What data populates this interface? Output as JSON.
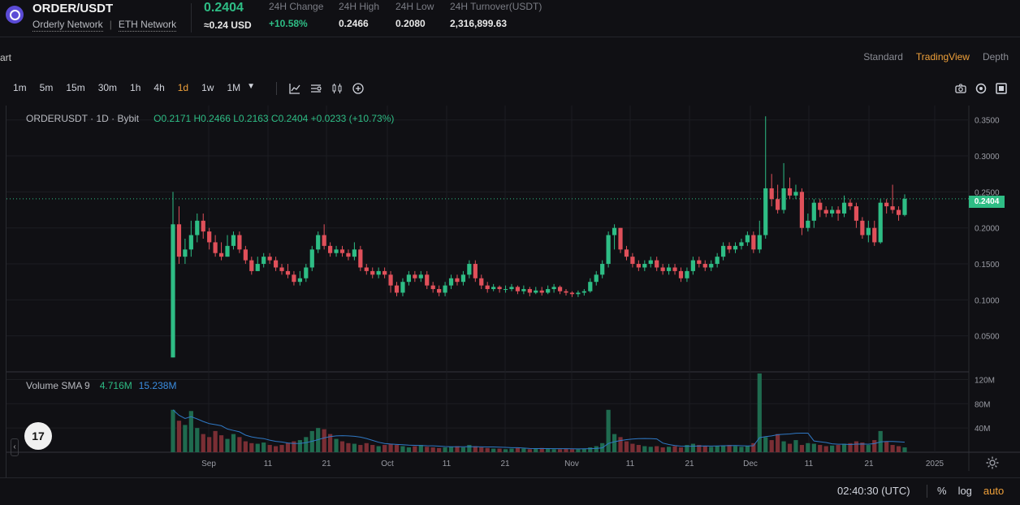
{
  "header": {
    "pair": "ORDER/USDT",
    "networks": [
      "Orderly Network",
      "ETH Network"
    ],
    "price": "0.2404",
    "price_usd": "≈0.24 USD",
    "stats": [
      {
        "label": "24H Change",
        "value": "+10.58%",
        "positive": true
      },
      {
        "label": "24H High",
        "value": "0.2466"
      },
      {
        "label": "24H Low",
        "value": "0.2080"
      },
      {
        "label": "24H Turnover(USDT)",
        "value": "2,316,899.63"
      }
    ]
  },
  "chart_header": {
    "left_label": "art",
    "modes": [
      "Standard",
      "TradingView",
      "Depth"
    ],
    "active_mode": "TradingView"
  },
  "toolbar": {
    "intervals": [
      "1m",
      "5m",
      "15m",
      "30m",
      "1h",
      "4h",
      "1d",
      "1w",
      "1M"
    ],
    "active_interval": "1d",
    "icons": [
      "indicator-icon",
      "chart-style-icon",
      "candles-icon",
      "add-icon"
    ],
    "right_icons": [
      "camera-icon",
      "settings-icon",
      "fullscreen-icon"
    ]
  },
  "legend": {
    "symbol": "ORDERUSDT · 1D · Bybit",
    "ohlc": "O0.2171  H0.2466  L0.2163  C0.2404  +0.0233 (+10.73%)"
  },
  "volume_legend": {
    "name": "Volume SMA 9",
    "v1": "4.716M",
    "v2": "15.238M"
  },
  "last_price_tag": "0.2404",
  "footer": {
    "clock": "02:40:30 (UTC)",
    "options": [
      "%",
      "log",
      "auto"
    ],
    "active_option": "auto"
  },
  "colors": {
    "up": "#2ebd85",
    "down": "#e0505a",
    "accent": "#f0a13a",
    "background": "#101014"
  },
  "chart_data": {
    "type": "candlestick",
    "price_axis": {
      "ticks": [
        "0.3500",
        "0.3000",
        "0.2500",
        "0.2000",
        "0.1500",
        "0.1000",
        "0.0500"
      ],
      "range": [
        0.0,
        0.37
      ]
    },
    "volume_axis": {
      "ticks": [
        "120M",
        "80M",
        "40M"
      ],
      "range": [
        0,
        130
      ]
    },
    "x_ticks": [
      "Sep",
      "11",
      "21",
      "Oct",
      "11",
      "21",
      "Nov",
      "11",
      "21",
      "Dec",
      "11",
      "21",
      "2025"
    ],
    "grid": true,
    "candles": [
      [
        0.02,
        0.205,
        0.25,
        0.02
      ],
      [
        0.205,
        0.16,
        0.23,
        0.15
      ],
      [
        0.16,
        0.17,
        0.185,
        0.15
      ],
      [
        0.17,
        0.19,
        0.21,
        0.16
      ],
      [
        0.19,
        0.21,
        0.22,
        0.18
      ],
      [
        0.21,
        0.195,
        0.22,
        0.185
      ],
      [
        0.195,
        0.18,
        0.2,
        0.17
      ],
      [
        0.18,
        0.165,
        0.19,
        0.16
      ],
      [
        0.165,
        0.16,
        0.18,
        0.155
      ],
      [
        0.16,
        0.175,
        0.19,
        0.16
      ],
      [
        0.175,
        0.19,
        0.195,
        0.17
      ],
      [
        0.19,
        0.17,
        0.195,
        0.165
      ],
      [
        0.17,
        0.155,
        0.175,
        0.15
      ],
      [
        0.155,
        0.14,
        0.16,
        0.135
      ],
      [
        0.14,
        0.15,
        0.16,
        0.14
      ],
      [
        0.15,
        0.16,
        0.165,
        0.145
      ],
      [
        0.16,
        0.155,
        0.165,
        0.15
      ],
      [
        0.155,
        0.145,
        0.16,
        0.14
      ],
      [
        0.145,
        0.14,
        0.15,
        0.135
      ],
      [
        0.14,
        0.135,
        0.15,
        0.13
      ],
      [
        0.135,
        0.125,
        0.14,
        0.12
      ],
      [
        0.125,
        0.13,
        0.14,
        0.12
      ],
      [
        0.13,
        0.145,
        0.15,
        0.125
      ],
      [
        0.145,
        0.17,
        0.175,
        0.14
      ],
      [
        0.17,
        0.19,
        0.195,
        0.165
      ],
      [
        0.19,
        0.175,
        0.205,
        0.17
      ],
      [
        0.175,
        0.165,
        0.18,
        0.16
      ],
      [
        0.165,
        0.17,
        0.175,
        0.16
      ],
      [
        0.17,
        0.165,
        0.175,
        0.16
      ],
      [
        0.165,
        0.16,
        0.17,
        0.155
      ],
      [
        0.16,
        0.17,
        0.18,
        0.155
      ],
      [
        0.17,
        0.145,
        0.175,
        0.14
      ],
      [
        0.145,
        0.14,
        0.15,
        0.135
      ],
      [
        0.14,
        0.135,
        0.145,
        0.13
      ],
      [
        0.135,
        0.14,
        0.145,
        0.13
      ],
      [
        0.14,
        0.135,
        0.145,
        0.13
      ],
      [
        0.135,
        0.12,
        0.14,
        0.11
      ],
      [
        0.12,
        0.11,
        0.125,
        0.105
      ],
      [
        0.11,
        0.125,
        0.13,
        0.105
      ],
      [
        0.125,
        0.135,
        0.14,
        0.12
      ],
      [
        0.135,
        0.13,
        0.14,
        0.125
      ],
      [
        0.13,
        0.135,
        0.14,
        0.125
      ],
      [
        0.135,
        0.12,
        0.14,
        0.115
      ],
      [
        0.12,
        0.115,
        0.125,
        0.11
      ],
      [
        0.115,
        0.11,
        0.12,
        0.105
      ],
      [
        0.11,
        0.12,
        0.125,
        0.105
      ],
      [
        0.12,
        0.13,
        0.135,
        0.115
      ],
      [
        0.13,
        0.125,
        0.135,
        0.12
      ],
      [
        0.125,
        0.135,
        0.14,
        0.12
      ],
      [
        0.135,
        0.15,
        0.155,
        0.13
      ],
      [
        0.15,
        0.13,
        0.155,
        0.125
      ],
      [
        0.13,
        0.12,
        0.135,
        0.115
      ],
      [
        0.12,
        0.115,
        0.125,
        0.11
      ],
      [
        0.115,
        0.118,
        0.122,
        0.112
      ],
      [
        0.118,
        0.115,
        0.12,
        0.11
      ],
      [
        0.115,
        0.115,
        0.12,
        0.11
      ],
      [
        0.115,
        0.118,
        0.122,
        0.112
      ],
      [
        0.118,
        0.112,
        0.12,
        0.108
      ],
      [
        0.112,
        0.115,
        0.12,
        0.108
      ],
      [
        0.115,
        0.11,
        0.118,
        0.105
      ],
      [
        0.11,
        0.113,
        0.118,
        0.108
      ],
      [
        0.113,
        0.11,
        0.118,
        0.106
      ],
      [
        0.11,
        0.115,
        0.12,
        0.108
      ],
      [
        0.115,
        0.118,
        0.122,
        0.11
      ],
      [
        0.118,
        0.112,
        0.12,
        0.108
      ],
      [
        0.112,
        0.11,
        0.115,
        0.106
      ],
      [
        0.11,
        0.108,
        0.112,
        0.104
      ],
      [
        0.108,
        0.11,
        0.113,
        0.104
      ],
      [
        0.11,
        0.112,
        0.115,
        0.106
      ],
      [
        0.112,
        0.125,
        0.13,
        0.11
      ],
      [
        0.125,
        0.135,
        0.14,
        0.12
      ],
      [
        0.135,
        0.15,
        0.155,
        0.13
      ],
      [
        0.15,
        0.19,
        0.195,
        0.145
      ],
      [
        0.19,
        0.2,
        0.205,
        0.17
      ],
      [
        0.2,
        0.17,
        0.2,
        0.165
      ],
      [
        0.17,
        0.16,
        0.175,
        0.155
      ],
      [
        0.16,
        0.15,
        0.165,
        0.145
      ],
      [
        0.15,
        0.145,
        0.155,
        0.14
      ],
      [
        0.145,
        0.15,
        0.155,
        0.14
      ],
      [
        0.15,
        0.155,
        0.16,
        0.145
      ],
      [
        0.155,
        0.145,
        0.16,
        0.14
      ],
      [
        0.145,
        0.14,
        0.15,
        0.135
      ],
      [
        0.14,
        0.145,
        0.15,
        0.135
      ],
      [
        0.145,
        0.14,
        0.15,
        0.135
      ],
      [
        0.14,
        0.13,
        0.145,
        0.125
      ],
      [
        0.13,
        0.14,
        0.145,
        0.125
      ],
      [
        0.14,
        0.155,
        0.16,
        0.135
      ],
      [
        0.155,
        0.15,
        0.16,
        0.145
      ],
      [
        0.15,
        0.145,
        0.155,
        0.14
      ],
      [
        0.145,
        0.15,
        0.155,
        0.14
      ],
      [
        0.15,
        0.16,
        0.165,
        0.145
      ],
      [
        0.16,
        0.175,
        0.18,
        0.155
      ],
      [
        0.175,
        0.17,
        0.18,
        0.165
      ],
      [
        0.17,
        0.175,
        0.18,
        0.165
      ],
      [
        0.175,
        0.18,
        0.185,
        0.17
      ],
      [
        0.18,
        0.19,
        0.195,
        0.175
      ],
      [
        0.19,
        0.17,
        0.195,
        0.165
      ],
      [
        0.17,
        0.19,
        0.21,
        0.165
      ],
      [
        0.19,
        0.255,
        0.355,
        0.185
      ],
      [
        0.255,
        0.24,
        0.275,
        0.23
      ],
      [
        0.24,
        0.225,
        0.26,
        0.22
      ],
      [
        0.225,
        0.255,
        0.29,
        0.22
      ],
      [
        0.255,
        0.245,
        0.27,
        0.24
      ],
      [
        0.245,
        0.25,
        0.26,
        0.24
      ],
      [
        0.25,
        0.2,
        0.255,
        0.19
      ],
      [
        0.2,
        0.21,
        0.22,
        0.195
      ],
      [
        0.21,
        0.235,
        0.24,
        0.2
      ],
      [
        0.235,
        0.225,
        0.24,
        0.215
      ],
      [
        0.225,
        0.22,
        0.23,
        0.215
      ],
      [
        0.22,
        0.225,
        0.23,
        0.215
      ],
      [
        0.225,
        0.22,
        0.23,
        0.21
      ],
      [
        0.22,
        0.235,
        0.245,
        0.215
      ],
      [
        0.235,
        0.23,
        0.24,
        0.225
      ],
      [
        0.23,
        0.21,
        0.235,
        0.2
      ],
      [
        0.21,
        0.19,
        0.215,
        0.185
      ],
      [
        0.19,
        0.2,
        0.21,
        0.18
      ],
      [
        0.2,
        0.18,
        0.21,
        0.175
      ],
      [
        0.18,
        0.235,
        0.24,
        0.178
      ],
      [
        0.235,
        0.23,
        0.24,
        0.22
      ],
      [
        0.23,
        0.225,
        0.26,
        0.22
      ],
      [
        0.225,
        0.218,
        0.23,
        0.21
      ],
      [
        0.218,
        0.2404,
        0.2466,
        0.216
      ]
    ],
    "volumes": [
      70,
      52,
      45,
      68,
      40,
      30,
      25,
      35,
      28,
      22,
      30,
      25,
      18,
      15,
      14,
      16,
      12,
      10,
      12,
      15,
      18,
      20,
      25,
      35,
      40,
      38,
      30,
      22,
      18,
      15,
      14,
      12,
      15,
      12,
      10,
      12,
      14,
      12,
      10,
      8,
      10,
      12,
      9,
      8,
      7,
      8,
      9,
      10,
      8,
      12,
      10,
      8,
      7,
      6,
      6,
      5,
      6,
      7,
      6,
      5,
      6,
      7,
      6,
      5,
      5,
      6,
      5,
      5,
      6,
      8,
      10,
      15,
      70,
      30,
      25,
      18,
      14,
      12,
      10,
      9,
      10,
      8,
      9,
      10,
      8,
      12,
      14,
      12,
      10,
      9,
      10,
      11,
      12,
      10,
      9,
      10,
      15,
      130,
      25,
      20,
      30,
      18,
      14,
      20,
      12,
      15,
      14,
      12,
      10,
      11,
      12,
      14,
      15,
      18,
      16,
      12,
      20,
      35,
      18,
      12,
      10,
      8
    ]
  }
}
